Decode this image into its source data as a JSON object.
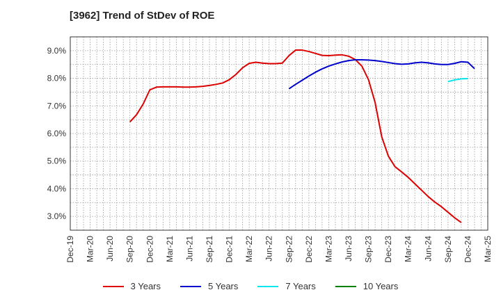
{
  "chart_data": {
    "type": "line",
    "title": "[3962]  Trend of StDev of ROE",
    "x_ticks": [
      "Dec-19",
      "Mar-20",
      "Jun-20",
      "Sep-20",
      "Dec-20",
      "Mar-21",
      "Jun-21",
      "Sep-21",
      "Dec-21",
      "Mar-22",
      "Jun-22",
      "Sep-22",
      "Dec-22",
      "Mar-23",
      "Jun-23",
      "Sep-23",
      "Dec-23",
      "Mar-24",
      "Jun-24",
      "Sep-24",
      "Dec-24",
      "Mar-25"
    ],
    "y_ticks": [
      "3.0%",
      "4.0%",
      "5.0%",
      "6.0%",
      "7.0%",
      "8.0%",
      "9.0%"
    ],
    "ylim": [
      2.5,
      9.5
    ],
    "grid": true,
    "legend_position": "bottom",
    "series": [
      {
        "name": "3 Years",
        "color": "#dd0000",
        "start_index": 9,
        "values": [
          6.42,
          6.68,
          7.07,
          7.58,
          7.68,
          7.69,
          7.69,
          7.69,
          7.68,
          7.68,
          7.69,
          7.71,
          7.74,
          7.78,
          7.83,
          7.95,
          8.14,
          8.38,
          8.54,
          8.58,
          8.55,
          8.53,
          8.53,
          8.55,
          8.82,
          9.02,
          9.02,
          8.97,
          8.9,
          8.83,
          8.82,
          8.84,
          8.85,
          8.8,
          8.68,
          8.44,
          7.95,
          7.12,
          5.88,
          5.18,
          4.8,
          4.61,
          4.41,
          4.18,
          3.95,
          3.72,
          3.52,
          3.35,
          3.15,
          2.95,
          2.78
        ]
      },
      {
        "name": "5 Years",
        "color": "#0000cc",
        "start_index": 33,
        "values": [
          7.62,
          7.78,
          7.93,
          8.08,
          8.22,
          8.34,
          8.44,
          8.52,
          8.59,
          8.64,
          8.67,
          8.67,
          8.66,
          8.64,
          8.61,
          8.57,
          8.53,
          8.51,
          8.52,
          8.56,
          8.58,
          8.56,
          8.52,
          8.5,
          8.5,
          8.54,
          8.6,
          8.58,
          8.35
        ]
      },
      {
        "name": "7 Years",
        "color": "#00e5ee",
        "start_index": 57,
        "values": [
          7.88,
          7.94,
          7.98,
          7.99
        ]
      },
      {
        "name": "10 Years",
        "color": "#008000",
        "start_index": 0,
        "values": []
      }
    ]
  }
}
